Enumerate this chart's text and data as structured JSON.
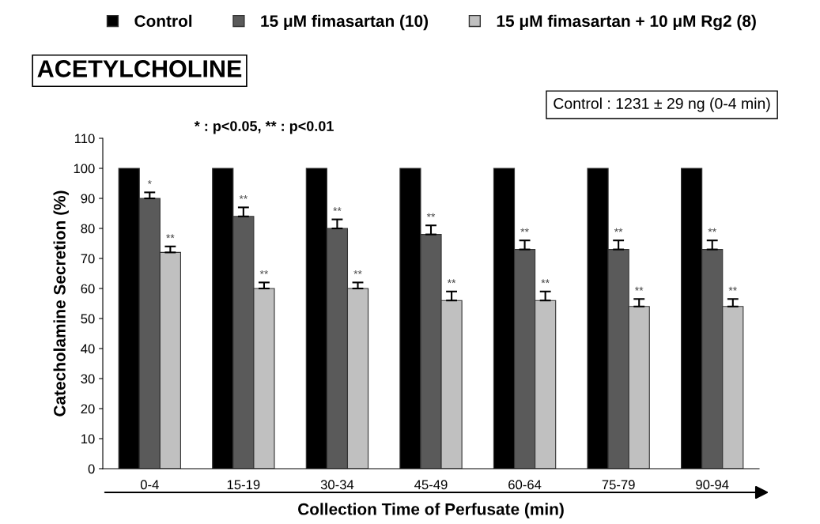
{
  "chart_data": {
    "type": "bar",
    "title": "ACETYLCHOLINE",
    "xlabel": "Collection Time of Perfusate (min)",
    "ylabel": "Catecholamine Secretion (%)",
    "annotations": [
      "Control : 1231 ± 29 ng (0-4 min)",
      "* : p<0.05, ** : p<0.01"
    ],
    "categories": [
      "0-4",
      "15-19",
      "30-34",
      "45-49",
      "60-64",
      "75-79",
      "90-94"
    ],
    "series": [
      {
        "name": "Control",
        "color": "#000000",
        "values": [
          100,
          100,
          100,
          100,
          100,
          100,
          100
        ]
      },
      {
        "name": "15 μM fimasartan (10)",
        "color": "#5a5a5a",
        "values": [
          90,
          84,
          80,
          78,
          73,
          73,
          73
        ],
        "errors": [
          [
            90,
            92
          ],
          [
            84,
            87
          ],
          [
            80,
            83
          ],
          [
            78,
            81
          ],
          [
            73,
            76
          ],
          [
            73,
            76
          ],
          [
            73,
            76
          ]
        ],
        "value_labels": [
          "*",
          "**",
          "**",
          "**",
          "**",
          "**",
          "**"
        ]
      },
      {
        "name": "15 μM fimasartan + 10 μM Rg2 (8)",
        "color": "#c0c0c0",
        "values": [
          72,
          60,
          60,
          56,
          56,
          54,
          54
        ],
        "errors": [
          [
            72,
            74
          ],
          [
            60,
            62
          ],
          [
            60,
            62
          ],
          [
            56,
            59
          ],
          [
            56,
            59
          ],
          [
            54,
            56.5
          ],
          [
            54,
            56.5
          ]
        ],
        "value_labels": [
          "**",
          "**",
          "**",
          "**",
          "**",
          "**",
          "**"
        ]
      }
    ],
    "ylim": [
      0,
      110
    ],
    "yticks": [
      0,
      10,
      20,
      30,
      40,
      50,
      60,
      70,
      80,
      90,
      100,
      110
    ],
    "grid": false,
    "legend": "top"
  }
}
